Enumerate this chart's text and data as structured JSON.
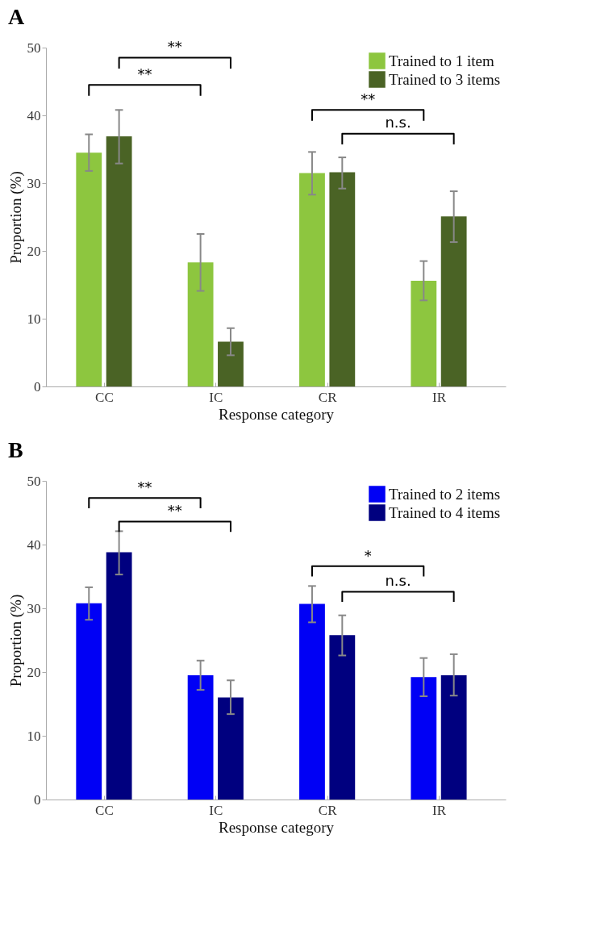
{
  "chart_data": [
    {
      "type": "bar",
      "title": "A",
      "xlabel": "Response category",
      "ylabel": "Proportion (%)",
      "categories": [
        "CC",
        "IC",
        "CR",
        "IR"
      ],
      "series": [
        {
          "name": "Trained to 1 item",
          "color": "#8dc63f",
          "values": [
            34.5,
            18.3,
            31.5,
            15.6
          ],
          "errors": [
            [
              31.8,
              37.2
            ],
            [
              14.1,
              22.5
            ],
            [
              28.3,
              34.6
            ],
            [
              12.7,
              18.5
            ]
          ]
        },
        {
          "name": "Trained to 3 items",
          "color": "#4a6325",
          "values": [
            36.9,
            6.6,
            31.6,
            25.1
          ],
          "errors": [
            [
              32.9,
              40.8
            ],
            [
              4.6,
              8.6
            ],
            [
              29.2,
              33.8
            ],
            [
              21.3,
              28.8
            ]
          ]
        }
      ],
      "ylim": [
        0,
        50
      ],
      "yticks": [
        0,
        10,
        20,
        30,
        40,
        50
      ],
      "grid": false,
      "legend": "top right",
      "annotations": [
        "**",
        "**",
        "**",
        "n.s."
      ]
    },
    {
      "type": "bar",
      "title": "B",
      "xlabel": "Response category",
      "ylabel": "Proportion (%)",
      "categories": [
        "CC",
        "IC",
        "CR",
        "IR"
      ],
      "series": [
        {
          "name": "Trained to 2 items",
          "color": "#0000f5",
          "values": [
            30.8,
            19.5,
            30.7,
            19.2
          ],
          "errors": [
            [
              28.2,
              33.3
            ],
            [
              17.2,
              21.8
            ],
            [
              27.8,
              33.5
            ],
            [
              16.2,
              22.2
            ]
          ]
        },
        {
          "name": "Trained to 4 items",
          "color": "#00007f",
          "values": [
            38.8,
            16.0,
            25.8,
            19.5
          ],
          "errors": [
            [
              35.3,
              42.1
            ],
            [
              13.4,
              18.7
            ],
            [
              22.6,
              28.9
            ],
            [
              16.3,
              22.8
            ]
          ]
        }
      ],
      "ylim": [
        0,
        50
      ],
      "yticks": [
        0,
        10,
        20,
        30,
        40,
        50
      ],
      "grid": false,
      "legend": "top right",
      "annotations": [
        "**",
        "**",
        "*",
        "n.s."
      ]
    }
  ]
}
